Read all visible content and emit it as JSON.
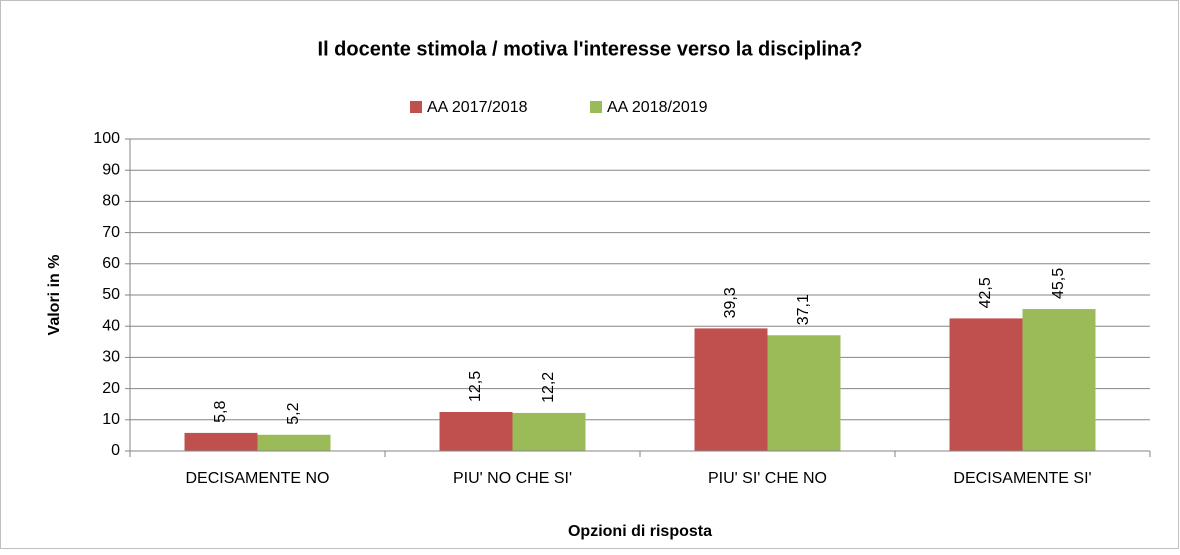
{
  "chart_data": {
    "type": "bar",
    "title": "Il docente stimola / motiva l'interesse verso la disciplina?",
    "x_label": "Opzioni di risposta",
    "y_label": "Valori in %",
    "categories": [
      "DECISAMENTE NO",
      "PIU' NO CHE SI'",
      "PIU' SI' CHE NO",
      "DECISAMENTE SI'"
    ],
    "series": [
      {
        "name": "AA 2017/2018",
        "color": "#c0504d",
        "values": [
          5.8,
          12.5,
          39.3,
          42.5
        ],
        "value_labels": [
          "5,8",
          "12,5",
          "39,3",
          "42,5"
        ]
      },
      {
        "name": "AA 2018/2019",
        "color": "#9bbb59",
        "values": [
          5.2,
          12.2,
          37.1,
          45.5
        ],
        "value_labels": [
          "5,2",
          "12,2",
          "37,1",
          "45,5"
        ]
      }
    ],
    "ylim": [
      0,
      100
    ],
    "yticks": [
      0,
      10,
      20,
      30,
      40,
      50,
      60,
      70,
      80,
      90,
      100
    ],
    "grid": true,
    "legend": "top"
  }
}
